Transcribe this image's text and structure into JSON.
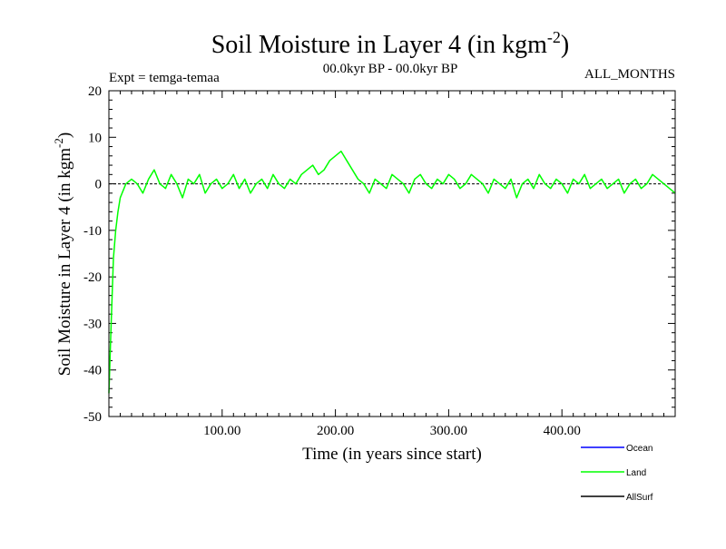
{
  "chart_data": {
    "type": "line",
    "title": "Soil Moisture in Layer 4 (in kgm",
    "title_sup": "-2",
    "title_end": ")",
    "subtitle_left": "Expt = temga-temaa",
    "subtitle_center": "00.0kyr BP - 00.0kyr BP",
    "subtitle_right": "ALL_MONTHS",
    "xlabel": "Time (in years since start)",
    "ylabel": "Soil Moisture in Layer 4 (in kgm",
    "ylabel_sup": "-2",
    "ylabel_end": ")",
    "xlim": [
      0,
      500
    ],
    "ylim": [
      -50,
      20
    ],
    "x_ticks": [
      100,
      200,
      300,
      400
    ],
    "x_tick_labels": [
      "100.00",
      "200.00",
      "300.00",
      "400.00"
    ],
    "y_ticks": [
      -50,
      -40,
      -30,
      -20,
      -10,
      0,
      10,
      20
    ],
    "y_tick_labels": [
      "-50",
      "-40",
      "-30",
      "-20",
      "-10",
      "0",
      "10",
      "20"
    ],
    "zero_line": true,
    "legend_position": "bottom-right",
    "series": [
      {
        "name": "Ocean",
        "color": "#0000ff",
        "values": []
      },
      {
        "name": "Land",
        "color": "#00ff00",
        "x": [
          0,
          2,
          4,
          6,
          8,
          10,
          15,
          20,
          25,
          30,
          35,
          40,
          45,
          50,
          55,
          60,
          65,
          70,
          75,
          80,
          85,
          90,
          95,
          100,
          105,
          110,
          115,
          120,
          125,
          130,
          135,
          140,
          145,
          150,
          155,
          160,
          165,
          170,
          175,
          180,
          185,
          190,
          195,
          200,
          205,
          210,
          215,
          220,
          225,
          230,
          235,
          240,
          245,
          250,
          255,
          260,
          265,
          270,
          275,
          280,
          285,
          290,
          295,
          300,
          305,
          310,
          315,
          320,
          325,
          330,
          335,
          340,
          345,
          350,
          355,
          360,
          365,
          370,
          375,
          380,
          385,
          390,
          395,
          400,
          405,
          410,
          415,
          420,
          425,
          430,
          435,
          440,
          445,
          450,
          455,
          460,
          465,
          470,
          475,
          480,
          485,
          490,
          495,
          500
        ],
        "values": [
          -45,
          -30,
          -16,
          -10,
          -6,
          -3,
          0,
          1,
          0,
          -2,
          1,
          3,
          0,
          -1,
          2,
          0,
          -3,
          1,
          0,
          2,
          -2,
          0,
          1,
          -1,
          0,
          2,
          -1,
          1,
          -2,
          0,
          1,
          -1,
          2,
          0,
          -1,
          1,
          0,
          2,
          3,
          4,
          2,
          3,
          5,
          6,
          7,
          5,
          3,
          1,
          0,
          -2,
          1,
          0,
          -1,
          2,
          1,
          0,
          -2,
          1,
          2,
          0,
          -1,
          1,
          0,
          2,
          1,
          -1,
          0,
          2,
          1,
          0,
          -2,
          1,
          0,
          -1,
          1,
          -3,
          0,
          1,
          -1,
          2,
          0,
          -1,
          1,
          0,
          -2,
          1,
          0,
          2,
          -1,
          0,
          1,
          -1,
          0,
          1,
          -2,
          0,
          1,
          -1,
          0,
          2,
          1,
          0,
          -1,
          -2
        ]
      },
      {
        "name": "AllSurf",
        "color": "#000000",
        "values": []
      }
    ]
  }
}
